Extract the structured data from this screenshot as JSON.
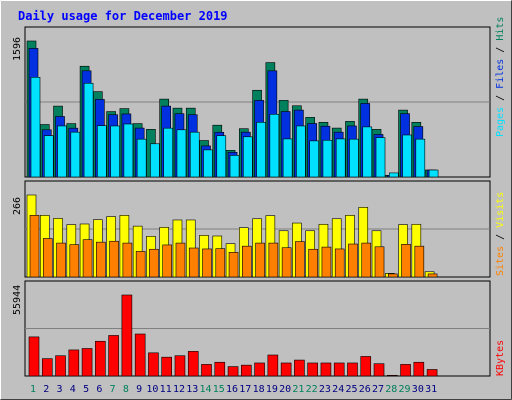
{
  "title": "Daily usage for December 2019",
  "colors": {
    "background": "#c0c0c0",
    "title": "#0000ff",
    "hits": "#00805c",
    "files": "#0030e0",
    "pages": "#00e0ff",
    "visits": "#ffff00",
    "sites": "#ff8000",
    "kbytes": "#ff0000",
    "weekend_label": "#00805c",
    "weekday_label": "#000080",
    "separator": "#808080"
  },
  "chart_data": [
    {
      "type": "bar",
      "name_panel": "hits-files-pages",
      "max_label": "1596",
      "ylim": [
        0,
        1596
      ],
      "categories": [
        "1",
        "2",
        "3",
        "4",
        "5",
        "6",
        "7",
        "8",
        "9",
        "10",
        "11",
        "12",
        "13",
        "14",
        "15",
        "16",
        "17",
        "18",
        "19",
        "20",
        "21",
        "22",
        "23",
        "24",
        "25",
        "26",
        "27",
        "28",
        "29",
        "30",
        "31"
      ],
      "legend": [
        "Pages",
        "Files",
        "Hits"
      ],
      "series": [
        {
          "name": "Hits",
          "values": [
            1596,
            616,
            832,
            627,
            1300,
            1002,
            768,
            803,
            627,
            559,
            914,
            808,
            808,
            428,
            608,
            313,
            567,
            1018,
            1343,
            899,
            836,
            700,
            642,
            574,
            653,
            914,
            559,
            20,
            785,
            642,
            82
          ]
        },
        {
          "name": "Files",
          "values": [
            1509,
            554,
            710,
            573,
            1246,
            911,
            731,
            740,
            574,
            0,
            832,
            743,
            731,
            365,
            525,
            290,
            526,
            899,
            1246,
            768,
            785,
            628,
            596,
            526,
            599,
            863,
            499,
            20,
            743,
            592,
            82
          ]
        },
        {
          "name": "Pages",
          "values": [
            1170,
            485,
            599,
            526,
            1100,
            602,
            599,
            622,
            444,
            390,
            573,
            554,
            526,
            318,
            485,
            253,
            472,
            642,
            736,
            447,
            599,
            424,
            431,
            447,
            444,
            588,
            462,
            48,
            493,
            444,
            82
          ]
        }
      ]
    },
    {
      "type": "bar",
      "name_panel": "visits-sites",
      "max_label": "266",
      "ylim": [
        0,
        266
      ],
      "categories": [
        "1",
        "2",
        "3",
        "4",
        "5",
        "6",
        "7",
        "8",
        "9",
        "10",
        "11",
        "12",
        "13",
        "14",
        "15",
        "16",
        "17",
        "18",
        "19",
        "20",
        "21",
        "22",
        "23",
        "24",
        "25",
        "26",
        "27",
        "28",
        "29",
        "30",
        "31"
      ],
      "legend": [
        "Sites",
        "Visits"
      ],
      "series": [
        {
          "name": "Visits",
          "values": [
            266,
            200,
            190,
            170,
            172,
            186,
            196,
            200,
            165,
            132,
            161,
            185,
            185,
            135,
            133,
            108,
            160,
            189,
            199,
            150,
            175,
            150,
            171,
            189,
            200,
            226,
            150,
            12,
            170,
            171,
            17
          ]
        },
        {
          "name": "Sites",
          "values": [
            200,
            125,
            110,
            105,
            121,
            113,
            116,
            110,
            83,
            90,
            104,
            110,
            94,
            91,
            92,
            80,
            100,
            110,
            110,
            95,
            115,
            90,
            97,
            91,
            107,
            110,
            98,
            10,
            106,
            100,
            10
          ]
        }
      ]
    },
    {
      "type": "bar",
      "name_panel": "kbytes",
      "max_label": "55944",
      "ylim": [
        0,
        55944
      ],
      "categories": [
        "1",
        "2",
        "3",
        "4",
        "5",
        "6",
        "7",
        "8",
        "9",
        "10",
        "11",
        "12",
        "13",
        "14",
        "15",
        "16",
        "17",
        "18",
        "19",
        "20",
        "21",
        "22",
        "23",
        "24",
        "25",
        "26",
        "27",
        "28",
        "29",
        "30",
        "31"
      ],
      "legend": [
        "KBytes"
      ],
      "series": [
        {
          "name": "KBytes",
          "values": [
            27000,
            12000,
            14000,
            18000,
            19000,
            24000,
            28000,
            55944,
            29000,
            16000,
            13000,
            14000,
            17000,
            8000,
            9500,
            6500,
            7500,
            9000,
            14500,
            9000,
            11000,
            9000,
            9000,
            9000,
            9000,
            13500,
            8500,
            500,
            8000,
            9500,
            4500
          ]
        }
      ]
    }
  ],
  "day_labels": [
    "1",
    "2",
    "3",
    "4",
    "5",
    "6",
    "7",
    "8",
    "9",
    "10",
    "11",
    "12",
    "13",
    "14",
    "15",
    "16",
    "17",
    "18",
    "19",
    "20",
    "21",
    "22",
    "23",
    "24",
    "25",
    "26",
    "27",
    "28",
    "29",
    "30",
    "31"
  ],
  "weekend_days": [
    1,
    7,
    8,
    14,
    15,
    21,
    22,
    28,
    29
  ]
}
